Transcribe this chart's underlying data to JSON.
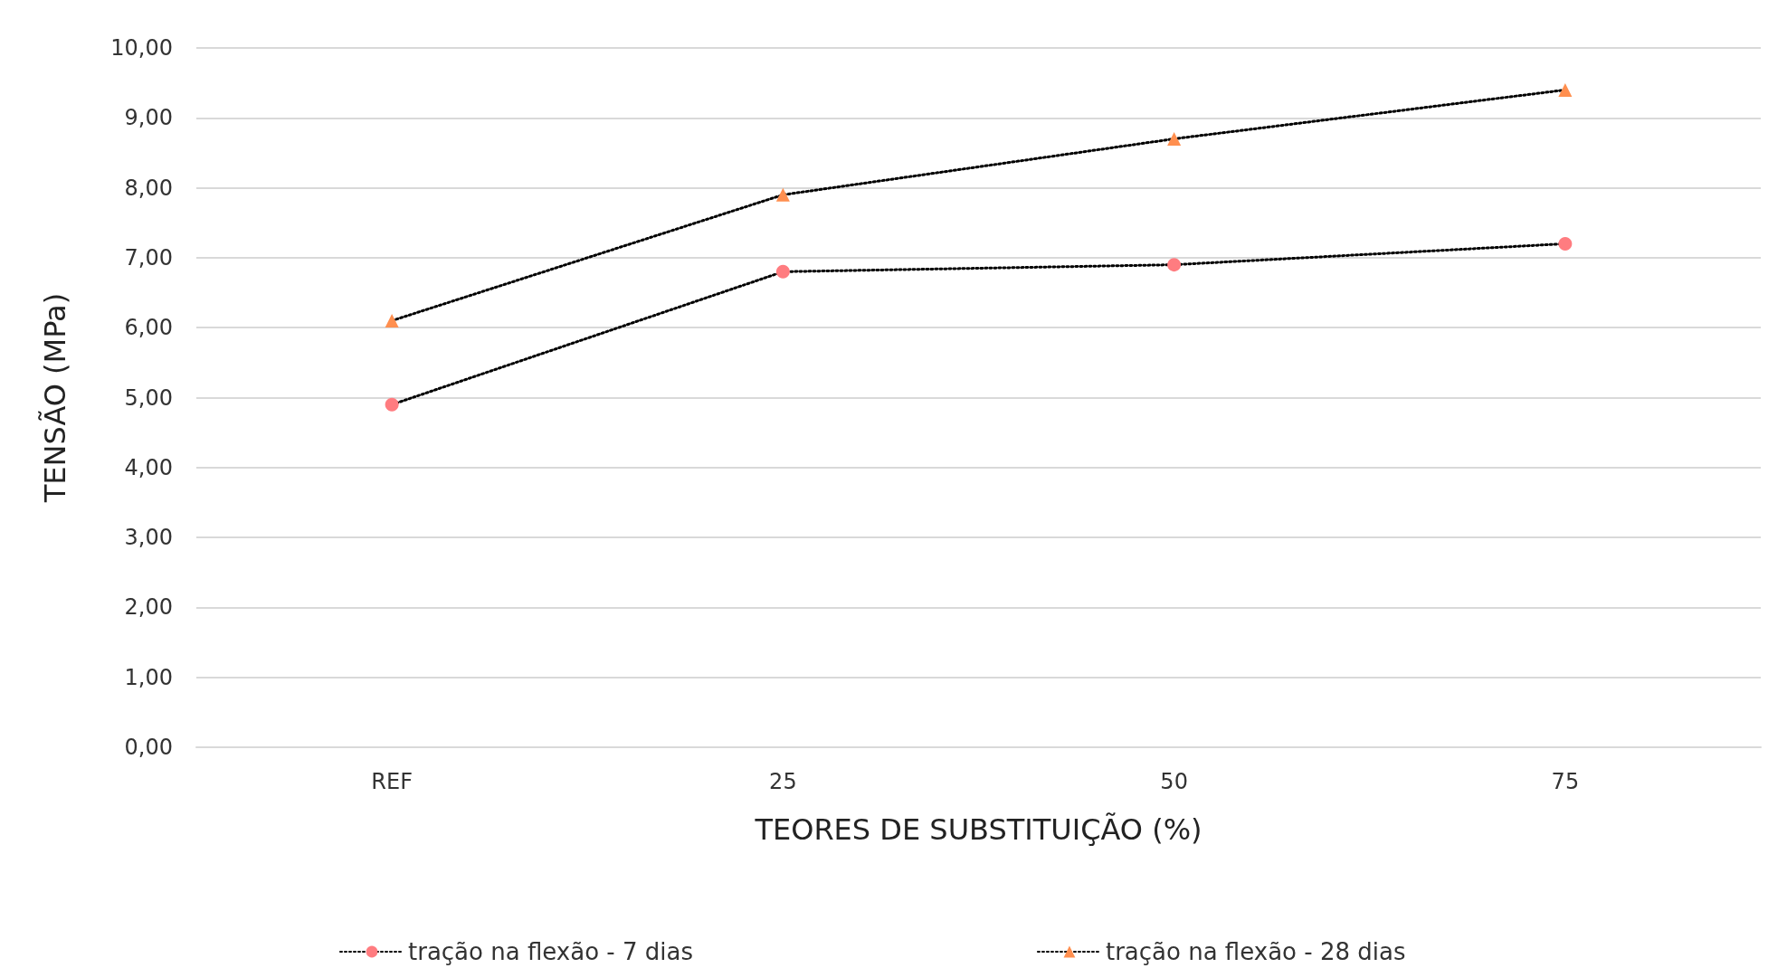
{
  "chart_data": {
    "type": "line",
    "xlabel": "TEORES DE SUBSTITUIÇÃO (%)",
    "ylabel": "TENSÃO (MPa)",
    "categories": [
      "REF",
      "25",
      "50",
      "75"
    ],
    "series": [
      {
        "name": "tração na flexão - 7 dias",
        "color": "#ff7c80",
        "marker": "circle",
        "values": [
          4.9,
          6.8,
          6.9,
          7.2
        ]
      },
      {
        "name": "tração na flexão - 28 dias",
        "color": "#ff8f4f",
        "marker": "triangle",
        "values": [
          6.1,
          7.9,
          8.7,
          9.4
        ]
      }
    ],
    "ylim": [
      0,
      10
    ],
    "yticks": [
      {
        "value": 0,
        "label": "0,00"
      },
      {
        "value": 1,
        "label": "1,00"
      },
      {
        "value": 2,
        "label": "2,00"
      },
      {
        "value": 3,
        "label": "3,00"
      },
      {
        "value": 4,
        "label": "4,00"
      },
      {
        "value": 5,
        "label": "5,00"
      },
      {
        "value": 6,
        "label": "6,00"
      },
      {
        "value": 7,
        "label": "7,00"
      },
      {
        "value": 8,
        "label": "8,00"
      },
      {
        "value": 9,
        "label": "9,00"
      },
      {
        "value": 10,
        "label": "10,00"
      }
    ],
    "grid": "y",
    "legend": "bottom",
    "line_style": "dotted"
  }
}
